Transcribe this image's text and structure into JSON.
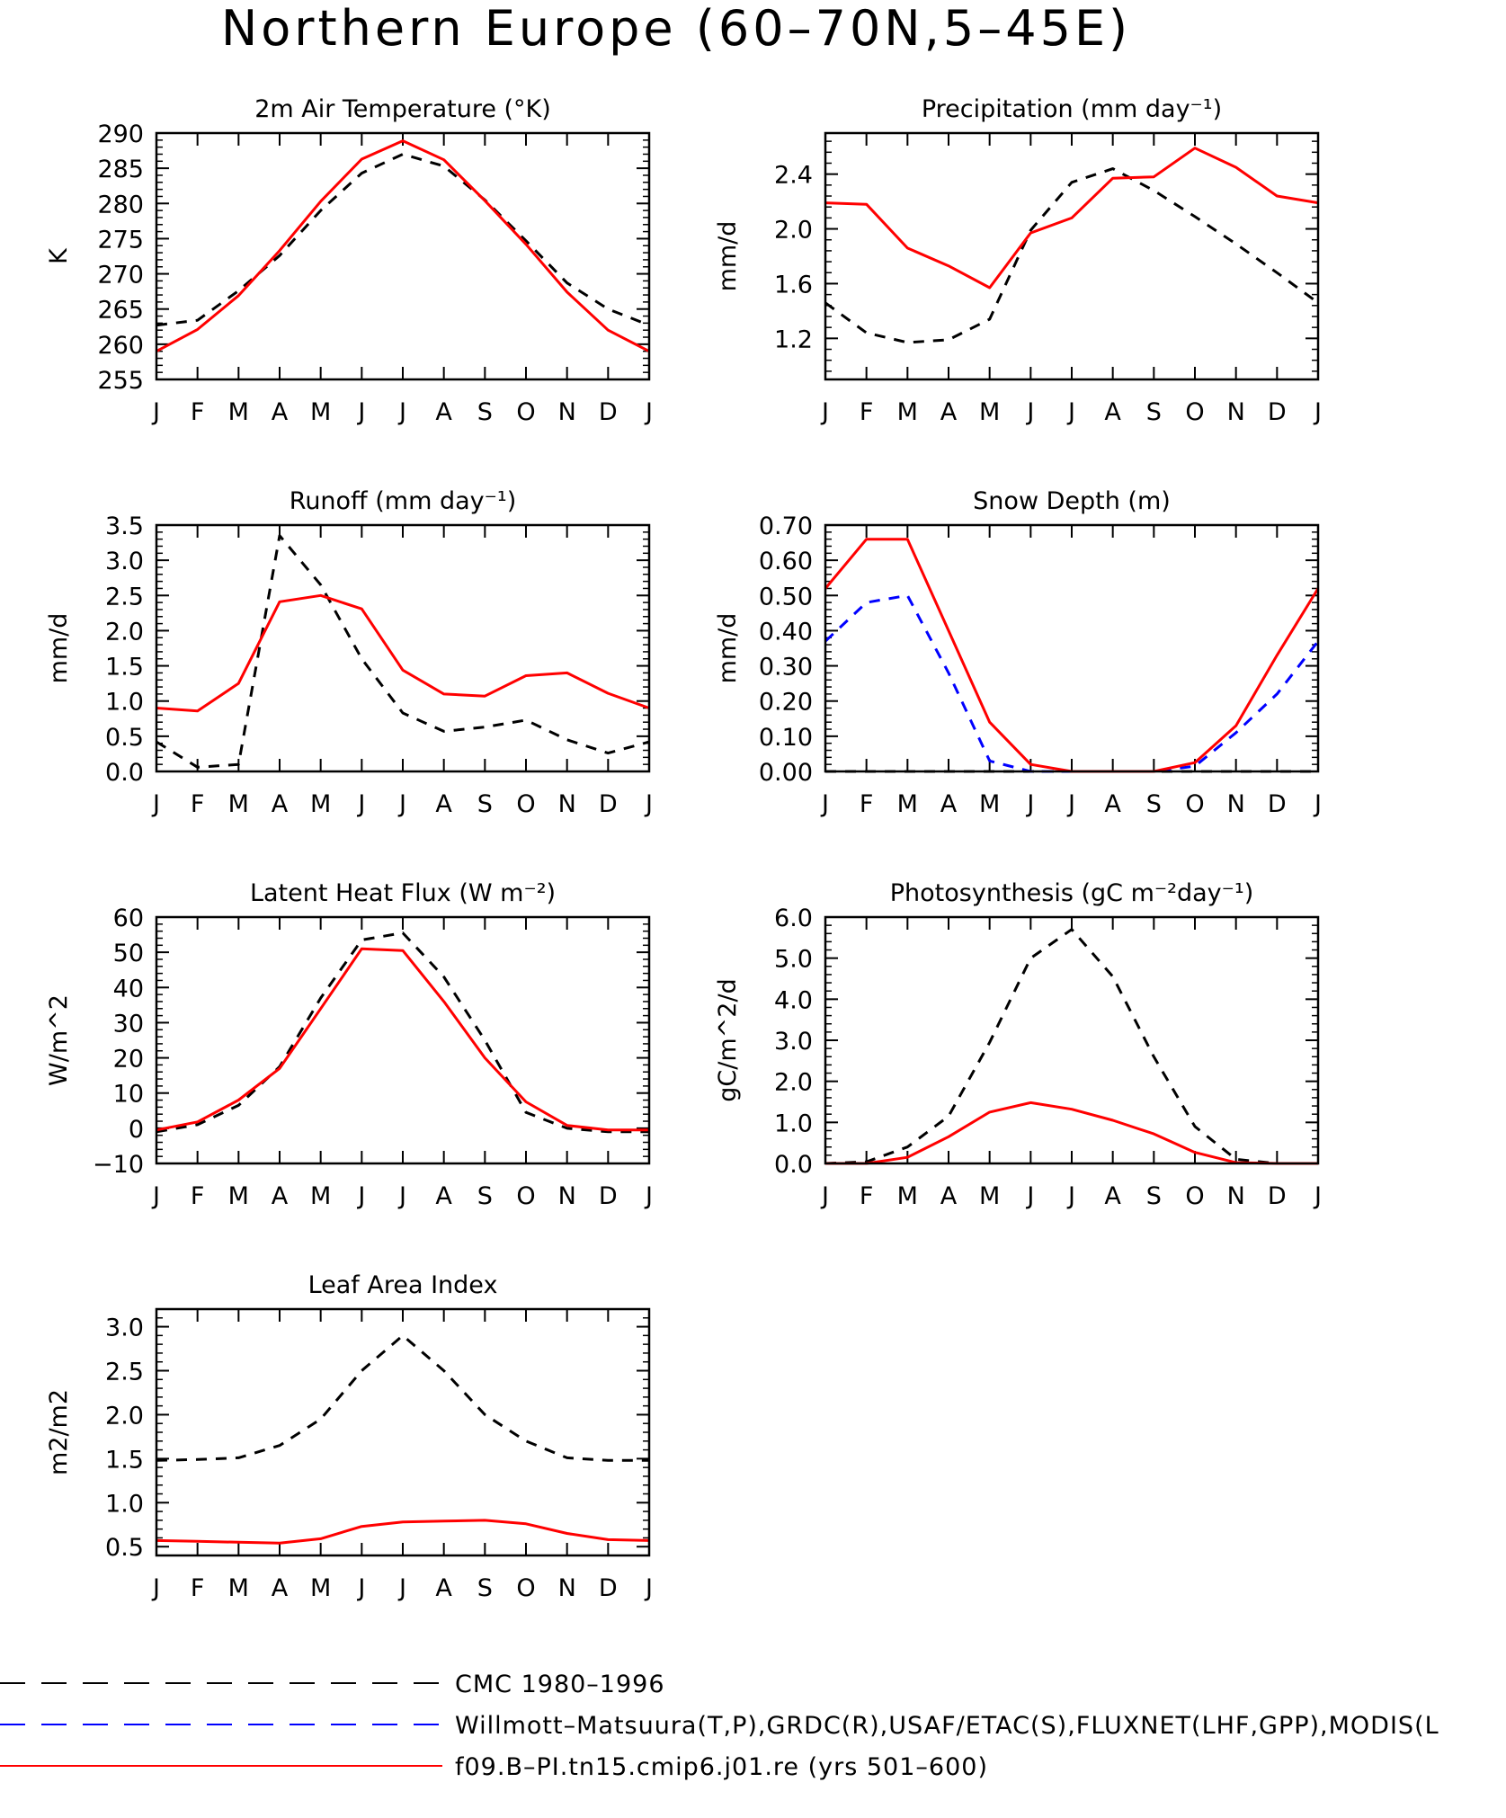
{
  "figure_title": "Northern Europe (60–70N,5–45E)",
  "months": [
    "J",
    "F",
    "M",
    "A",
    "M",
    "J",
    "J",
    "A",
    "S",
    "O",
    "N",
    "D",
    "J"
  ],
  "legend": [
    {
      "label": "CMC 1980–1996",
      "color": "#000000",
      "style": "dashed"
    },
    {
      "label": "Willmott–Matsuura(T,P),GRDC(R),USAF/ETAC(S),FLUXNET(LHF,GPP),MODIS(L",
      "color": "#0000ff",
      "style": "dashed"
    },
    {
      "label": "f09.B–PI.tn15.cmip6.j01.re (yrs 501–600)",
      "color": "#ff0000",
      "style": "solid"
    }
  ],
  "chart_data": [
    {
      "type": "line",
      "title": "2m Air Temperature (°K)",
      "ylabel": "K",
      "ylim": [
        255,
        290
      ],
      "yticks": [
        255,
        260,
        265,
        270,
        275,
        280,
        285,
        290
      ],
      "tick_decimals": 0,
      "series": [
        {
          "color": "#000000",
          "dash": true,
          "values": [
            262.7,
            263.4,
            267.6,
            272.6,
            279.0,
            284.3,
            287.0,
            285.3,
            280.5,
            274.7,
            268.7,
            265.0,
            262.7
          ]
        },
        {
          "color": "#ff0000",
          "dash": false,
          "values": [
            259.0,
            262.1,
            266.9,
            273.3,
            280.3,
            286.3,
            288.9,
            286.2,
            280.4,
            274.2,
            267.4,
            262.0,
            259.0
          ]
        }
      ]
    },
    {
      "type": "line",
      "title": "Precipitation (mm day⁻¹)",
      "ylabel": "mm/d",
      "ylim": [
        0.9,
        2.7
      ],
      "yticks": [
        1.2,
        1.6,
        2.0,
        2.4
      ],
      "tick_decimals": 1,
      "series": [
        {
          "color": "#000000",
          "dash": true,
          "values": [
            1.46,
            1.24,
            1.17,
            1.19,
            1.34,
            1.99,
            2.34,
            2.44,
            2.28,
            2.09,
            1.89,
            1.68,
            1.46
          ]
        },
        {
          "color": "#ff0000",
          "dash": false,
          "values": [
            2.19,
            2.18,
            1.86,
            1.73,
            1.57,
            1.97,
            2.08,
            2.37,
            2.38,
            2.59,
            2.45,
            2.24,
            2.19
          ]
        }
      ]
    },
    {
      "type": "line",
      "title": "Runoff (mm day⁻¹)",
      "ylabel": "mm/d",
      "ylim": [
        0.0,
        3.5
      ],
      "yticks": [
        0.0,
        0.5,
        1.0,
        1.5,
        2.0,
        2.5,
        3.0,
        3.5
      ],
      "tick_decimals": 1,
      "series": [
        {
          "color": "#000000",
          "dash": true,
          "values": [
            0.42,
            0.06,
            0.1,
            3.35,
            2.65,
            1.6,
            0.83,
            0.57,
            0.63,
            0.73,
            0.45,
            0.26,
            0.42
          ]
        },
        {
          "color": "#ff0000",
          "dash": false,
          "values": [
            0.9,
            0.86,
            1.25,
            2.41,
            2.5,
            2.31,
            1.44,
            1.1,
            1.07,
            1.36,
            1.4,
            1.11,
            0.9
          ]
        }
      ]
    },
    {
      "type": "line",
      "title": "Snow Depth (m)",
      "ylabel": "mm/d",
      "ylim": [
        0.0,
        0.7
      ],
      "yticks": [
        0.0,
        0.1,
        0.2,
        0.3,
        0.4,
        0.5,
        0.6,
        0.7
      ],
      "tick_decimals": 2,
      "series": [
        {
          "color": "#000000",
          "dash": true,
          "values": [
            0,
            0,
            0,
            0,
            0,
            0,
            0,
            0,
            0,
            0,
            0,
            0,
            0
          ]
        },
        {
          "color": "#0000ff",
          "dash": true,
          "values": [
            0.37,
            0.48,
            0.5,
            0.28,
            0.03,
            0.0,
            0.0,
            0.0,
            0.0,
            0.015,
            0.11,
            0.22,
            0.37
          ]
        },
        {
          "color": "#ff0000",
          "dash": false,
          "values": [
            0.52,
            0.66,
            0.66,
            0.4,
            0.14,
            0.02,
            0.0,
            0.0,
            0.0,
            0.025,
            0.13,
            0.33,
            0.52
          ]
        }
      ]
    },
    {
      "type": "line",
      "title": "Latent Heat Flux (W m⁻²)",
      "ylabel": "W/m^2",
      "ylim": [
        -10,
        60
      ],
      "yticks": [
        -10,
        0,
        10,
        20,
        30,
        40,
        50,
        60
      ],
      "tick_decimals": 0,
      "series": [
        {
          "color": "#000000",
          "dash": true,
          "values": [
            -1.0,
            1.0,
            6.5,
            17.5,
            37.0,
            53.5,
            55.5,
            43.0,
            25.0,
            4.5,
            0.0,
            -1.0,
            -1.0
          ]
        },
        {
          "color": "#ff0000",
          "dash": false,
          "values": [
            -0.5,
            1.8,
            8.0,
            17.0,
            34.0,
            51.0,
            50.5,
            36.0,
            20.0,
            7.5,
            0.8,
            -0.5,
            -0.5
          ]
        }
      ]
    },
    {
      "type": "line",
      "title": "Photosynthesis (gC m⁻²day⁻¹)",
      "ylabel": "gC/m^2/d",
      "ylim": [
        0.0,
        6.0
      ],
      "yticks": [
        0.0,
        1.0,
        2.0,
        3.0,
        4.0,
        5.0,
        6.0
      ],
      "tick_decimals": 1,
      "series": [
        {
          "color": "#000000",
          "dash": true,
          "values": [
            0.0,
            0.04,
            0.4,
            1.15,
            2.95,
            5.0,
            5.7,
            4.55,
            2.6,
            0.9,
            0.1,
            0.0,
            0.0
          ]
        },
        {
          "color": "#ff0000",
          "dash": false,
          "values": [
            0.0,
            0.0,
            0.15,
            0.65,
            1.25,
            1.48,
            1.32,
            1.05,
            0.72,
            0.27,
            0.02,
            0.0,
            0.0
          ]
        }
      ]
    },
    {
      "type": "line",
      "title": "Leaf Area Index",
      "ylabel": "m2/m2",
      "ylim": [
        0.4,
        3.2
      ],
      "yticks": [
        0.5,
        1.0,
        1.5,
        2.0,
        2.5,
        3.0
      ],
      "tick_decimals": 1,
      "series": [
        {
          "color": "#000000",
          "dash": true,
          "values": [
            1.48,
            1.49,
            1.51,
            1.65,
            1.95,
            2.5,
            2.9,
            2.5,
            2.0,
            1.7,
            1.51,
            1.48,
            1.48
          ]
        },
        {
          "color": "#ff0000",
          "dash": false,
          "values": [
            0.57,
            0.56,
            0.55,
            0.54,
            0.59,
            0.73,
            0.78,
            0.79,
            0.8,
            0.76,
            0.65,
            0.58,
            0.57
          ]
        }
      ]
    }
  ]
}
